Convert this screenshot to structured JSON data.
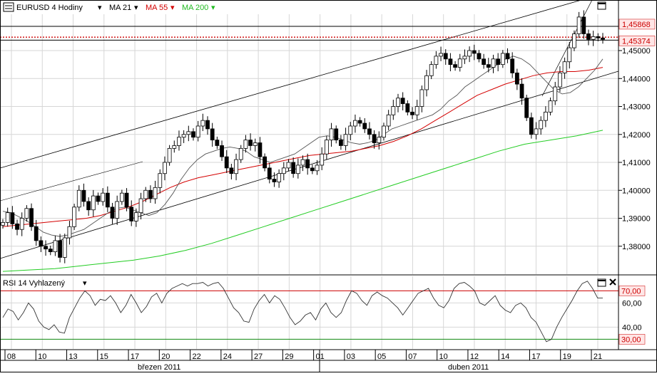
{
  "header": {
    "symbol": "EURUSD 4 Hodiny",
    "ma21": "MA 21",
    "ma55": "MA 55",
    "ma200": "MA 200"
  },
  "rsi_panel": {
    "title": "RSI 14 Vyhlazený"
  },
  "colors": {
    "ma21": "#000000",
    "ma55": "#d40000",
    "ma200": "#22cc22",
    "grid": "#d6d6d6",
    "candle_up": "#ffffff",
    "candle_down": "#000000",
    "rsi_line": "#333333",
    "rsi_70": "#cc0000",
    "rsi_30": "#118811",
    "price_label_bg": "#ffe6e6",
    "price_label_text": "#cc0000"
  },
  "chart_data": [
    {
      "type": "candlestick",
      "yaxis": {
        "min": 1.37,
        "max": 1.463,
        "ticks": [
          1.38,
          1.39,
          1.4,
          1.41,
          1.42,
          1.43,
          1.44,
          1.45
        ],
        "tick_labels": [
          "1,38000",
          "1,39000",
          "1,40000",
          "1,41000",
          "1,42000",
          "1,43000",
          "1,44000",
          "1,45000"
        ]
      },
      "price_labels": [
        "1,45868",
        "1,45374"
      ],
      "horizontal_levels": [
        1.45868,
        1.4548,
        1.45374
      ],
      "x_ticks": [
        "08",
        "10",
        "13",
        "15",
        "17",
        "20",
        "22",
        "24",
        "27",
        "29",
        "01",
        "03",
        "05",
        "07",
        "10",
        "12",
        "14",
        "17",
        "19",
        "21"
      ],
      "months": [
        "březen 2011",
        "duben 2011"
      ],
      "closes": [
        1.3885,
        1.392,
        1.388,
        1.386,
        1.39,
        1.3935,
        1.387,
        1.382,
        1.38,
        1.379,
        1.378,
        1.382,
        1.376,
        1.383,
        1.387,
        1.394,
        1.4,
        1.396,
        1.393,
        1.398,
        1.396,
        1.399,
        1.394,
        1.39,
        1.396,
        1.399,
        1.394,
        1.389,
        1.392,
        1.397,
        1.4,
        1.397,
        1.401,
        1.406,
        1.41,
        1.415,
        1.416,
        1.419,
        1.42,
        1.421,
        1.419,
        1.423,
        1.425,
        1.422,
        1.418,
        1.416,
        1.412,
        1.408,
        1.406,
        1.411,
        1.415,
        1.418,
        1.416,
        1.417,
        1.412,
        1.408,
        1.404,
        1.403,
        1.406,
        1.408,
        1.41,
        1.406,
        1.409,
        1.411,
        1.408,
        1.407,
        1.409,
        1.413,
        1.418,
        1.422,
        1.418,
        1.416,
        1.42,
        1.423,
        1.425,
        1.424,
        1.422,
        1.42,
        1.417,
        1.419,
        1.423,
        1.427,
        1.43,
        1.433,
        1.431,
        1.428,
        1.427,
        1.43,
        1.436,
        1.441,
        1.445,
        1.448,
        1.449,
        1.447,
        1.445,
        1.444,
        1.447,
        1.448,
        1.45,
        1.449,
        1.447,
        1.445,
        1.444,
        1.447,
        1.445,
        1.449,
        1.447,
        1.442,
        1.438,
        1.433,
        1.426,
        1.42,
        1.422,
        1.425,
        1.428,
        1.432,
        1.437,
        1.442,
        1.446,
        1.451,
        1.456,
        1.462,
        1.456,
        1.454,
        1.455,
        1.4545,
        1.454
      ],
      "ma21": [
        1.3925,
        1.392,
        1.3905,
        1.389,
        1.387,
        1.385,
        1.384,
        1.3835,
        1.384,
        1.385,
        1.386,
        1.388,
        1.39,
        1.392,
        1.3935,
        1.394,
        1.393,
        1.392,
        1.391,
        1.392,
        1.395,
        1.399,
        1.404,
        1.408,
        1.411,
        1.413,
        1.414,
        1.415,
        1.4155,
        1.415,
        1.414,
        1.412,
        1.411,
        1.41,
        1.411,
        1.412,
        1.413,
        1.415,
        1.417,
        1.419,
        1.4195,
        1.419,
        1.418,
        1.417,
        1.4165,
        1.417,
        1.418,
        1.42,
        1.422,
        1.423,
        1.424,
        1.425,
        1.426,
        1.427,
        1.429,
        1.432,
        1.434,
        1.437,
        1.439,
        1.441,
        1.443,
        1.445,
        1.447,
        1.448,
        1.447,
        1.445,
        1.442,
        1.439,
        1.436,
        1.4345,
        1.435,
        1.437,
        1.44,
        1.443,
        1.447
      ],
      "ma55": [
        1.387,
        1.3875,
        1.388,
        1.3885,
        1.389,
        1.3895,
        1.39,
        1.391,
        1.3925,
        1.394,
        1.396,
        1.3985,
        1.401,
        1.403,
        1.4045,
        1.4055,
        1.4065,
        1.4075,
        1.4085,
        1.4095,
        1.4105,
        1.4115,
        1.4125,
        1.413,
        1.4135,
        1.414,
        1.415,
        1.416,
        1.4175,
        1.4195,
        1.422,
        1.425,
        1.428,
        1.431,
        1.434,
        1.436,
        1.438,
        1.4395,
        1.441,
        1.442,
        1.4425,
        1.4425,
        1.443,
        1.444
      ],
      "ma200": [
        1.371,
        1.3715,
        1.372,
        1.373,
        1.374,
        1.375,
        1.3765,
        1.3785,
        1.381,
        1.384,
        1.387,
        1.39,
        1.393,
        1.396,
        1.399,
        1.402,
        1.405,
        1.408,
        1.411,
        1.414,
        1.4165,
        1.418,
        1.4195,
        1.4215
      ]
    },
    {
      "type": "line",
      "title": "RSI 14 Vyhlazený",
      "yaxis": {
        "min": 22,
        "max": 82,
        "ticks": [
          40,
          60
        ],
        "tick_labels": [
          "40,00",
          "60,00"
        ]
      },
      "levels": [
        70,
        30
      ],
      "level_labels": [
        "70,00",
        "30,00"
      ],
      "values": [
        48,
        55,
        53,
        46,
        52,
        60,
        55,
        45,
        40,
        38,
        42,
        36,
        35,
        48,
        56,
        64,
        70,
        66,
        58,
        63,
        62,
        66,
        60,
        52,
        58,
        67,
        60,
        52,
        57,
        65,
        68,
        60,
        68,
        72,
        74,
        76,
        74,
        76,
        76,
        77,
        74,
        76,
        77,
        72,
        64,
        56,
        52,
        45,
        44,
        55,
        62,
        67,
        60,
        66,
        63,
        56,
        48,
        42,
        45,
        50,
        52,
        46,
        55,
        60,
        52,
        48,
        52,
        62,
        70,
        68,
        62,
        58,
        66,
        69,
        66,
        64,
        60,
        56,
        50,
        56,
        62,
        68,
        70,
        72,
        64,
        58,
        56,
        62,
        72,
        76,
        77,
        74,
        70,
        60,
        58,
        62,
        66,
        58,
        54,
        52,
        58,
        60,
        56,
        48,
        44,
        36,
        28,
        30,
        40,
        48,
        55,
        62,
        70,
        76,
        78,
        72,
        64,
        64
      ]
    }
  ]
}
